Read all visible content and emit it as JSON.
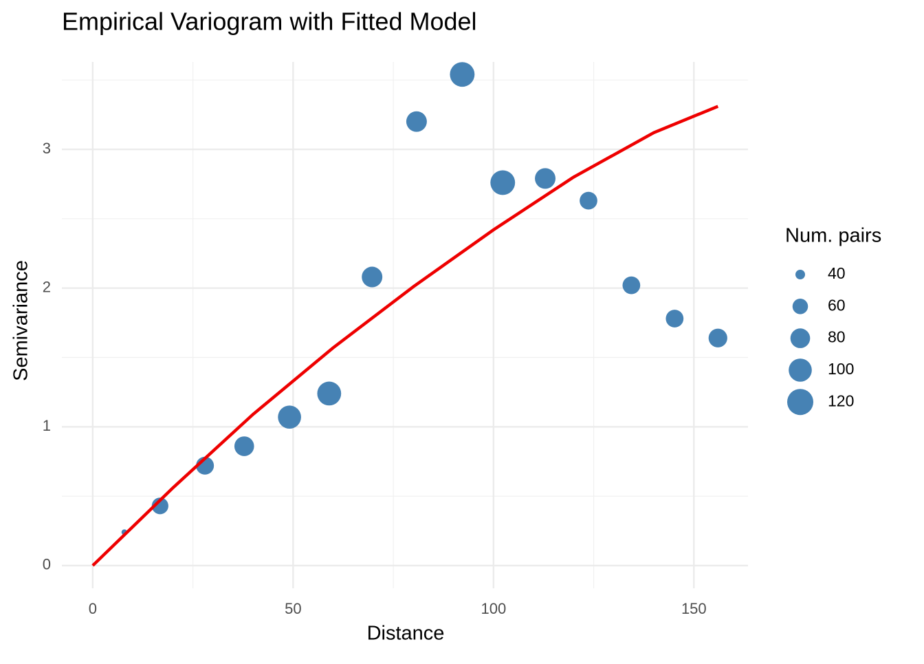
{
  "chart_data": {
    "type": "scatter",
    "title": "Empirical Variogram with Fitted Model",
    "x_label": "Distance",
    "y_label": "Semivariance",
    "xlim": [
      -7.7,
      163.5
    ],
    "ylim": [
      -0.164,
      3.63
    ],
    "xticks": [
      0,
      50,
      100,
      150
    ],
    "yticks": [
      0,
      1,
      2,
      3
    ],
    "xminorticks": [
      25,
      75,
      125
    ],
    "yminorticks": [
      0.5,
      1.5,
      2.5,
      3.5
    ],
    "grid": true,
    "series": [
      {
        "name": "Empirical",
        "color": "#4682b4",
        "x": [
          7.9,
          16.8,
          28.0,
          37.8,
          49.1,
          59.0,
          69.7,
          80.8,
          92.2,
          102.3,
          112.9,
          123.7,
          134.4,
          145.2,
          156.0
        ],
        "values": [
          0.24,
          0.43,
          0.72,
          0.86,
          1.07,
          1.24,
          2.08,
          3.2,
          3.54,
          2.76,
          2.79,
          2.63,
          2.02,
          1.78,
          1.64
        ],
        "sizes": [
          32,
          65,
          71,
          80,
          100,
          105,
          85,
          85,
          110,
          110,
          85,
          70,
          70,
          70,
          75
        ]
      },
      {
        "name": "Fitted Model",
        "color": "#ee0000",
        "type": "line",
        "x": [
          0,
          20,
          40,
          60,
          80,
          100,
          120,
          140,
          156
        ],
        "values": [
          0,
          0.56,
          1.09,
          1.57,
          2.01,
          2.42,
          2.8,
          3.12,
          3.31
        ]
      }
    ],
    "size_legend": {
      "title": "Num. pairs",
      "values": [
        40,
        60,
        80,
        100,
        120
      ]
    }
  }
}
